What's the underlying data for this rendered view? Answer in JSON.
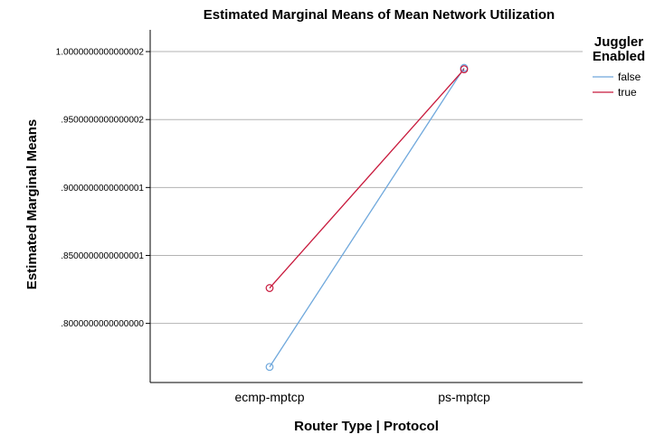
{
  "chart_data": {
    "type": "line",
    "title": "Estimated Marginal Means of Mean Network Utilization",
    "xlabel": "Router Type | Protocol",
    "ylabel": "Estimated Marginal Means",
    "categories": [
      "ecmp-mptcp",
      "ps-mptcp"
    ],
    "series": [
      {
        "name": "false",
        "color": "#6fa8dc",
        "values": [
          0.768,
          0.988
        ]
      },
      {
        "name": "true",
        "color": "#c8193c",
        "values": [
          0.826,
          0.987
        ]
      }
    ],
    "ylim": [
      0.7565,
      1.016
    ],
    "y_ticks": [
      {
        "value": 0.8,
        "label": ".8000000000000000"
      },
      {
        "value": 0.85,
        "label": ".8500000000000001"
      },
      {
        "value": 0.9,
        "label": ".9000000000000001"
      },
      {
        "value": 0.95,
        "label": ".9500000000000002"
      },
      {
        "value": 1.0,
        "label": "1.0000000000000002"
      }
    ],
    "grid": true,
    "legend": {
      "title_lines": [
        "Juggler",
        "Enabled"
      ],
      "position": "right"
    },
    "marker": "open-circle"
  }
}
